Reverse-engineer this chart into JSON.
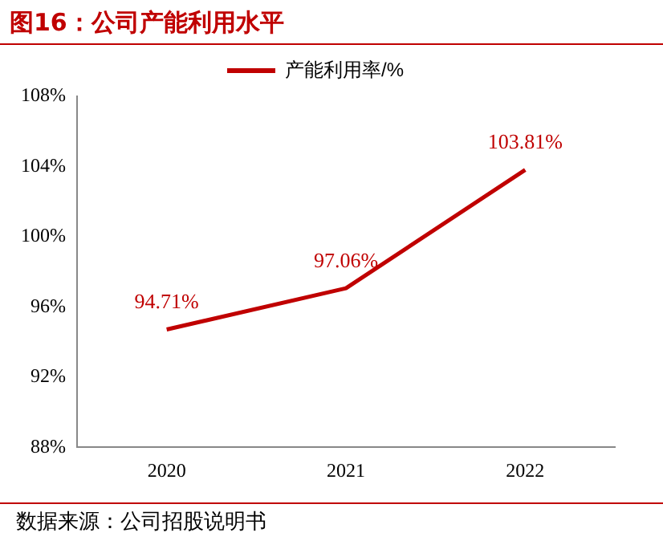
{
  "chart_data": {
    "type": "line",
    "title": "图16：公司产能利用水平",
    "annotations": [
      "数据来源：公司招股说明书"
    ],
    "categories": [
      "2020",
      "2021",
      "2022"
    ],
    "series": [
      {
        "name": "产能利用率/%",
        "color": "#c00000",
        "values": [
          94.71,
          97.06,
          103.81
        ],
        "value_labels": [
          "94.71%",
          "97.06%",
          "103.81%"
        ]
      }
    ],
    "ylim": [
      88,
      108
    ],
    "yticks": [
      {
        "value": 88,
        "label": "88%"
      },
      {
        "value": 92,
        "label": "92%"
      },
      {
        "value": 96,
        "label": "96%"
      },
      {
        "value": 100,
        "label": "100%"
      },
      {
        "value": 104,
        "label": "104%"
      },
      {
        "value": 108,
        "label": "108%"
      }
    ],
    "grid": false,
    "legend": "top",
    "marker": "none",
    "line_style": "solid"
  }
}
